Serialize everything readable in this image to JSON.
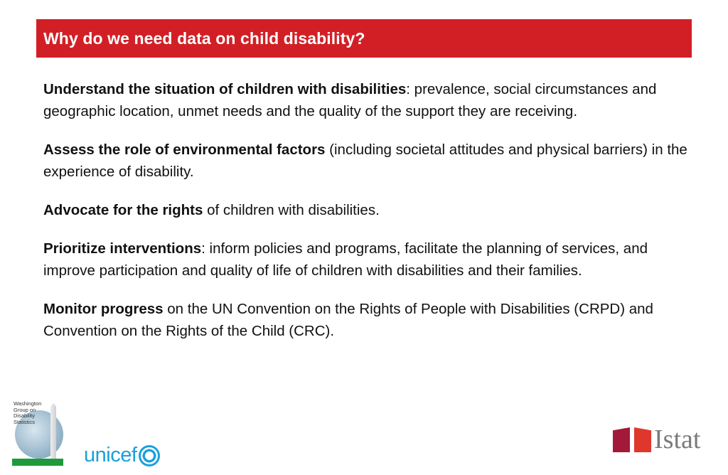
{
  "slide": {
    "title": "Why do we need data on child disability?",
    "accent_color": "#d21f26",
    "points": [
      {
        "bold": "Understand the situation of children with disabilities",
        "rest": ": prevalence, social circumstances and geographic location, unmet  needs and the quality of the support they are receiving."
      },
      {
        "bold": "Assess the role of environmental factors",
        "rest": " (including societal attitudes and physical barriers) in the experience of disability."
      },
      {
        "bold": "Advocate for the rights",
        "rest": " of children with disabilities."
      },
      {
        "bold": "Prioritize interventions",
        "rest": ": inform policies and programs, facilitate the planning of services, and improve participation and quality of life of children with disabilities and their families."
      },
      {
        "bold": "Monitor progress",
        "rest": " on the UN Convention on the Rights of People with Disabilities (CRPD) and Convention on the Rights of the Child (CRC)."
      }
    ]
  },
  "logos": {
    "washington_group": {
      "text": "Washington Group on Disability Statistics",
      "icon": "washington-monument-globe-icon"
    },
    "unicef": {
      "text": "unicef",
      "icon": "un-emblem-icon",
      "color": "#1ba0dc"
    },
    "istat": {
      "text": "Istat",
      "icon": "istat-blocks-icon"
    }
  }
}
